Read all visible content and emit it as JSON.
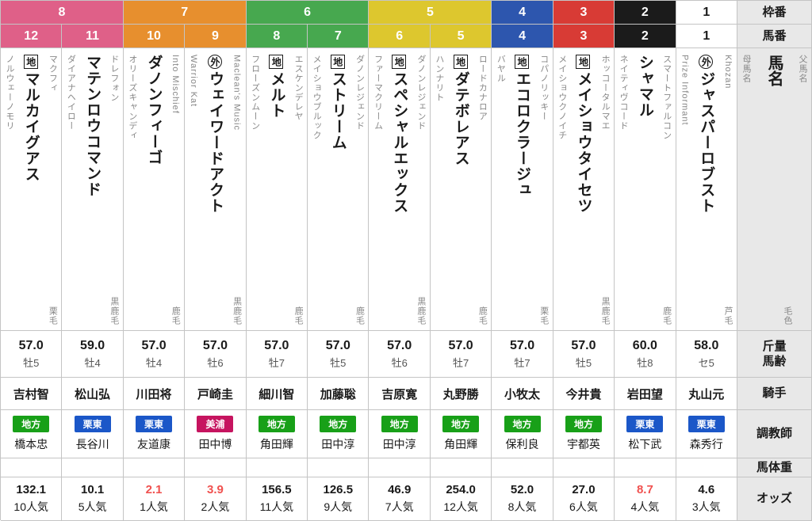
{
  "labels": {
    "waku": "枠番",
    "uma": "馬番",
    "name": "馬名",
    "sire": "父馬名",
    "dam": "母馬名",
    "coat": "毛色",
    "weight": "斤量",
    "age": "馬齢",
    "jockey": "騎手",
    "trainer": "調教師",
    "body_weight": "馬体重",
    "odds": "オッズ"
  },
  "frame_colors": {
    "8": "#df6088",
    "7": "#e78f2e",
    "6": "#47a84f",
    "5": "#ddc72e",
    "4": "#2d56ae",
    "3": "#d83b35",
    "2": "#1b1b1b",
    "1": "#ffffff"
  },
  "badge_colors": {
    "地方": "#18a018",
    "栗東": "#1b57c8",
    "美浦": "#c6145f"
  },
  "odds_red_color": "#f0514f",
  "frames": [
    {
      "frame": "8",
      "span": 2
    },
    {
      "frame": "7",
      "span": 2
    },
    {
      "frame": "6",
      "span": 2
    },
    {
      "frame": "5",
      "span": 2
    },
    {
      "frame": "4",
      "span": 1
    },
    {
      "frame": "3",
      "span": 1
    },
    {
      "frame": "2",
      "span": 1
    },
    {
      "frame": "1",
      "span": 1
    }
  ],
  "horses": [
    {
      "waku": "8",
      "num": "12",
      "mark": "地",
      "sire": "マクフィ",
      "name": "マルカイグアス",
      "dam": "ノルウェーノモリ",
      "coat": "栗毛",
      "weight": "57.0",
      "age": "牡5",
      "jockey": "吉村智",
      "region": "地方",
      "trainer": "橋本忠",
      "body_weight": "",
      "odds": "132.1",
      "popularity": "10人気",
      "odds_red": false
    },
    {
      "waku": "8",
      "num": "11",
      "mark": "",
      "sire": "ドレフォン",
      "name": "マテンロウコマンド",
      "dam": "ダイアナヘイロー",
      "coat": "黒鹿毛",
      "weight": "59.0",
      "age": "牡4",
      "jockey": "松山弘",
      "region": "栗東",
      "trainer": "長谷川",
      "body_weight": "",
      "odds": "10.1",
      "popularity": "5人気",
      "odds_red": false
    },
    {
      "waku": "7",
      "num": "10",
      "mark": "",
      "sire": "Into Mischief",
      "name": "ダノンフィーゴ",
      "dam": "オリーズキャンディ",
      "coat": "鹿毛",
      "weight": "57.0",
      "age": "牡4",
      "jockey": "川田将",
      "region": "栗東",
      "trainer": "友道康",
      "body_weight": "",
      "odds": "2.1",
      "popularity": "1人気",
      "odds_red": true
    },
    {
      "waku": "7",
      "num": "9",
      "mark": "外",
      "sire": "Maclean's Music",
      "name": "ウェイワードアクト",
      "dam": "Warrior Kat",
      "coat": "黒鹿毛",
      "weight": "57.0",
      "age": "牡6",
      "jockey": "戸崎圭",
      "region": "美浦",
      "trainer": "田中博",
      "body_weight": "",
      "odds": "3.9",
      "popularity": "2人気",
      "odds_red": true
    },
    {
      "waku": "6",
      "num": "8",
      "mark": "地",
      "sire": "エスケンデレヤ",
      "name": "メルト",
      "dam": "フローズンムーン",
      "coat": "鹿毛",
      "weight": "57.0",
      "age": "牡7",
      "jockey": "細川智",
      "region": "地方",
      "trainer": "角田輝",
      "body_weight": "",
      "odds": "156.5",
      "popularity": "11人気",
      "odds_red": false
    },
    {
      "waku": "6",
      "num": "7",
      "mark": "地",
      "sire": "ダノンレジェンド",
      "name": "ストリーム",
      "dam": "メイショウブルック",
      "coat": "鹿毛",
      "weight": "57.0",
      "age": "牡5",
      "jockey": "加藤聡",
      "region": "地方",
      "trainer": "田中淳",
      "body_weight": "",
      "odds": "126.5",
      "popularity": "9人気",
      "odds_red": false
    },
    {
      "waku": "5",
      "num": "6",
      "mark": "地",
      "sire": "ダノンレジェンド",
      "name": "スペシャルエックス",
      "dam": "ファーマクリーム",
      "coat": "黒鹿毛",
      "weight": "57.0",
      "age": "牡6",
      "jockey": "吉原寛",
      "region": "地方",
      "trainer": "田中淳",
      "body_weight": "",
      "odds": "46.9",
      "popularity": "7人気",
      "odds_red": false
    },
    {
      "waku": "5",
      "num": "5",
      "mark": "地",
      "sire": "ロードカナロア",
      "name": "ダテボレアス",
      "dam": "ハンナリト",
      "coat": "鹿毛",
      "weight": "57.0",
      "age": "牡7",
      "jockey": "丸野勝",
      "region": "地方",
      "trainer": "角田輝",
      "body_weight": "",
      "odds": "254.0",
      "popularity": "12人気",
      "odds_red": false
    },
    {
      "waku": "4",
      "num": "4",
      "mark": "地",
      "sire": "コパノリッキー",
      "name": "エコロクラージュ",
      "dam": "バヤル",
      "coat": "栗毛",
      "weight": "57.0",
      "age": "牡7",
      "jockey": "小牧太",
      "region": "地方",
      "trainer": "保利良",
      "body_weight": "",
      "odds": "52.0",
      "popularity": "8人気",
      "odds_red": false
    },
    {
      "waku": "3",
      "num": "3",
      "mark": "地",
      "sire": "ホッコータルマエ",
      "name": "メイショウタイセツ",
      "dam": "メイショウクノイチ",
      "coat": "黒鹿毛",
      "weight": "57.0",
      "age": "牡5",
      "jockey": "今井貴",
      "region": "地方",
      "trainer": "宇都英",
      "body_weight": "",
      "odds": "27.0",
      "popularity": "6人気",
      "odds_red": false
    },
    {
      "waku": "2",
      "num": "2",
      "mark": "",
      "sire": "スマートファルコン",
      "name": "シャマル",
      "dam": "ネイティヴコード",
      "coat": "鹿毛",
      "weight": "60.0",
      "age": "牡8",
      "jockey": "岩田望",
      "region": "栗東",
      "trainer": "松下武",
      "body_weight": "",
      "odds": "8.7",
      "popularity": "4人気",
      "odds_red": true
    },
    {
      "waku": "1",
      "num": "1",
      "mark": "外",
      "sire": "Khozan",
      "name": "ジャスパーロブスト",
      "dam": "Prize Informant",
      "coat": "芦毛",
      "weight": "58.0",
      "age": "セ5",
      "jockey": "丸山元",
      "region": "栗東",
      "trainer": "森秀行",
      "body_weight": "",
      "odds": "4.6",
      "popularity": "3人気",
      "odds_red": false
    }
  ]
}
